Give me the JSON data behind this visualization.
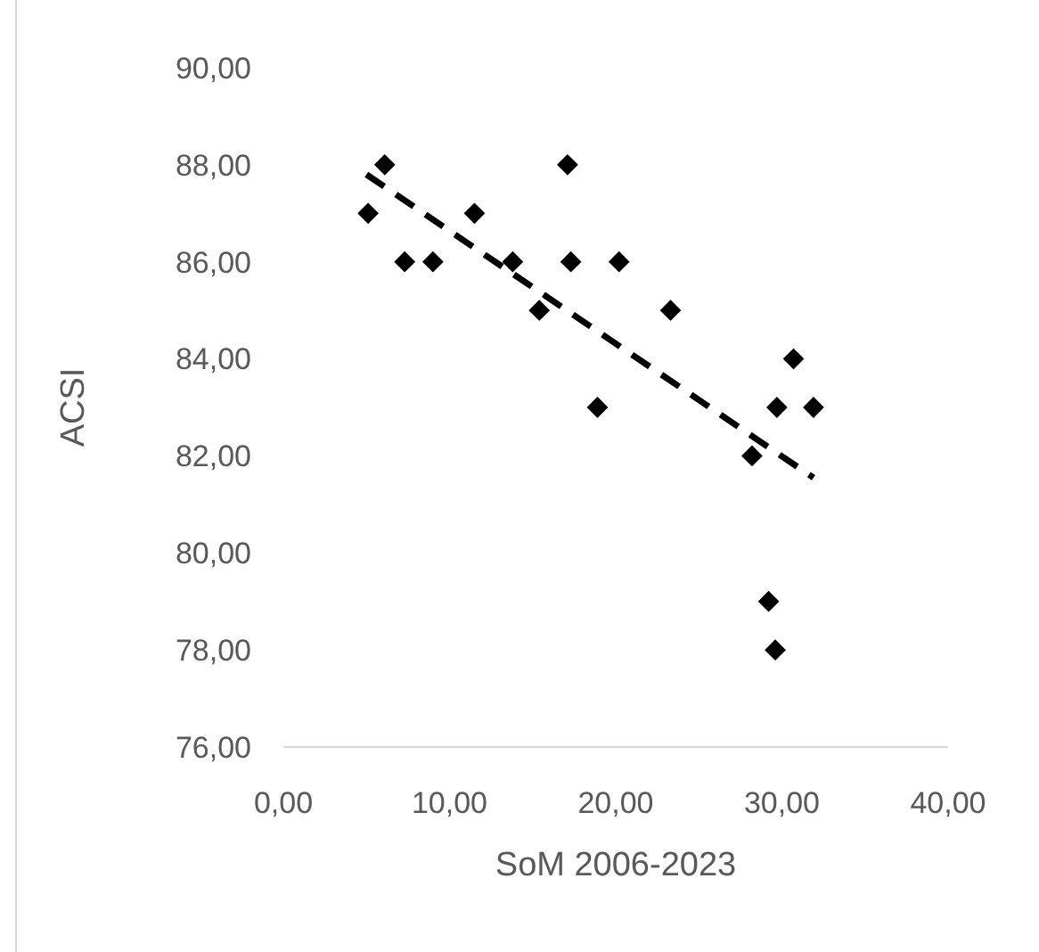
{
  "chart_data": {
    "type": "scatter",
    "xlabel": "SoM 2006-2023",
    "ylabel": "ACSI",
    "xlim": [
      0,
      40
    ],
    "ylim": [
      76,
      90
    ],
    "xticks": [
      {
        "value": 0,
        "label": "0,00"
      },
      {
        "value": 10,
        "label": "10,00"
      },
      {
        "value": 20,
        "label": "20,00"
      },
      {
        "value": 30,
        "label": "30,00"
      },
      {
        "value": 40,
        "label": "40,00"
      }
    ],
    "yticks": [
      {
        "value": 76,
        "label": "76,00"
      },
      {
        "value": 78,
        "label": "78,00"
      },
      {
        "value": 80,
        "label": "80,00"
      },
      {
        "value": 82,
        "label": "82,00"
      },
      {
        "value": 84,
        "label": "84,00"
      },
      {
        "value": 86,
        "label": "86,00"
      },
      {
        "value": 88,
        "label": "88,00"
      },
      {
        "value": 90,
        "label": "90,00"
      }
    ],
    "grid": false,
    "marker": "diamond",
    "series": [
      {
        "color": "#000000",
        "x": [
          5.1,
          6.1,
          7.3,
          9.0,
          11.5,
          13.8,
          15.4,
          17.1,
          17.3,
          18.9,
          20.2,
          23.3,
          28.2,
          29.2,
          29.6,
          29.7,
          30.7,
          31.9
        ],
        "values": [
          87,
          88,
          86,
          86,
          87,
          86,
          85,
          88,
          86,
          83,
          86,
          85,
          82,
          79,
          78,
          83,
          84,
          83
        ]
      },
      {
        "type": "line",
        "color": "#000000",
        "line_style": "dashed",
        "marker": "none",
        "x": [
          5.0,
          31.9
        ],
        "values": [
          87.8,
          81.55
        ]
      }
    ]
  }
}
